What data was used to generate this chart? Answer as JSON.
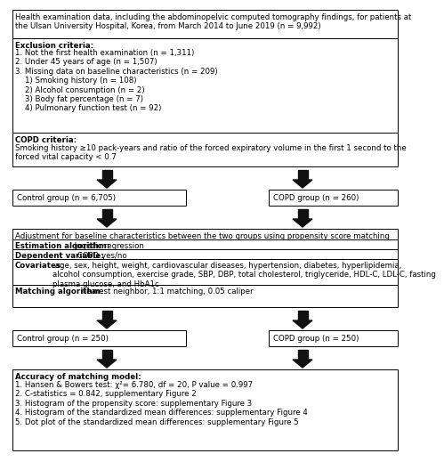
{
  "box1_text": "Health examination data, including the abdominopelvic computed tomography findings, for patients at\nthe Ulsan University Hospital, Korea, from March 2014 to June 2019 (n = 9,992)",
  "box2_bold": "Exclusion criteria:",
  "box2_normal": "1. Not the first health examination (n = 1,311)\n2. Under 45 years of age (n = 1,507)\n3. Missing data on baseline characteristics (n = 209)\n    1) Smoking history (n = 108)\n    2) Alcohol consumption (n = 2)\n    3) Body fat percentage (n = 7)\n    4) Pulmonary function test (n = 92)",
  "box3_bold": "COPD criteria:",
  "box3_normal": "Smoking history ≥10 pack-years and ratio of the forced expiratory volume in the first 1 second to the\nforced vital capacity < 0.7",
  "box4a_text": "Control group (n = 6,705)",
  "box4b_text": "COPD group (n = 260)",
  "box5_line1": "Adjustment for baseline characteristics between the two groups using propensity score matching",
  "box5b_bold": "Estimation algorithm:",
  "box5b_normal": " logistic regression",
  "box5c_bold": "Dependent variable:",
  "box5c_normal": " COPD yes/no",
  "box5d_bold": "Covariates:",
  "box5d_normal": " age, sex, height, weight, cardiovascular diseases, hypertension, diabetes, hyperlipidemia,\nalcohol consumption, exercise grade, SBP, DBP, total cholesterol, triglyceride, HDL-C, LDL-C, fasting\nplasma glucose, and HbA1c",
  "box5e_bold": "Matching algorithm:",
  "box5e_normal": " nearest neighbor, 1:1 matching, 0.05 caliper",
  "box6a_text": "Control group (n = 250)",
  "box6b_text": "COPD group (n = 250)",
  "box7_bold": "Accuracy of matching model:",
  "box7_normal": "1. Hansen & Bowers test: χ²= 6.780, df = 20, P value = 0.997\n2. C-statistics = 0.842, supplementary Figure 2\n3. Histogram of the propensity score: supplementary Figure 3\n4. Histogram of the standardized mean differences: supplementary Figure 4\n5. Dot plot of the standardized mean differences: supplementary Figure 5",
  "bg_color": "#ffffff",
  "box_edge_color": "#000000",
  "arrow_color": "#111111",
  "text_color": "#000000",
  "fontsize": 6.2
}
